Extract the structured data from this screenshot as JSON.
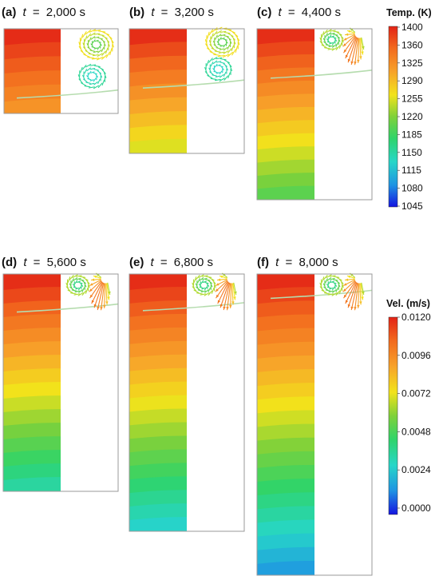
{
  "panels": [
    {
      "label": "(a)",
      "var": "t",
      "value": "2,000 s"
    },
    {
      "label": "(b)",
      "var": "t",
      "value": "3,200 s"
    },
    {
      "label": "(c)",
      "var": "t",
      "value": "4,400 s"
    },
    {
      "label": "(d)",
      "var": "t",
      "value": "5,600 s"
    },
    {
      "label": "(e)",
      "var": "t",
      "value": "6,800 s"
    },
    {
      "label": "(f)",
      "var": "t",
      "value": "8,000 s"
    }
  ],
  "temp_colorbar": {
    "title": "Temp. (K)",
    "ticks": [
      "1400",
      "1360",
      "1325",
      "1290",
      "1255",
      "1220",
      "1185",
      "1150",
      "1115",
      "1080",
      "1045"
    ]
  },
  "vel_colorbar": {
    "title": "Vel. (m/s)",
    "ticks": [
      "0.0120",
      "0.0096",
      "0.0072",
      "0.0048",
      "0.0024",
      "0.0000"
    ]
  },
  "colors": {
    "frame": "#9a9a9a",
    "interface_line": "#b5dcae"
  }
}
